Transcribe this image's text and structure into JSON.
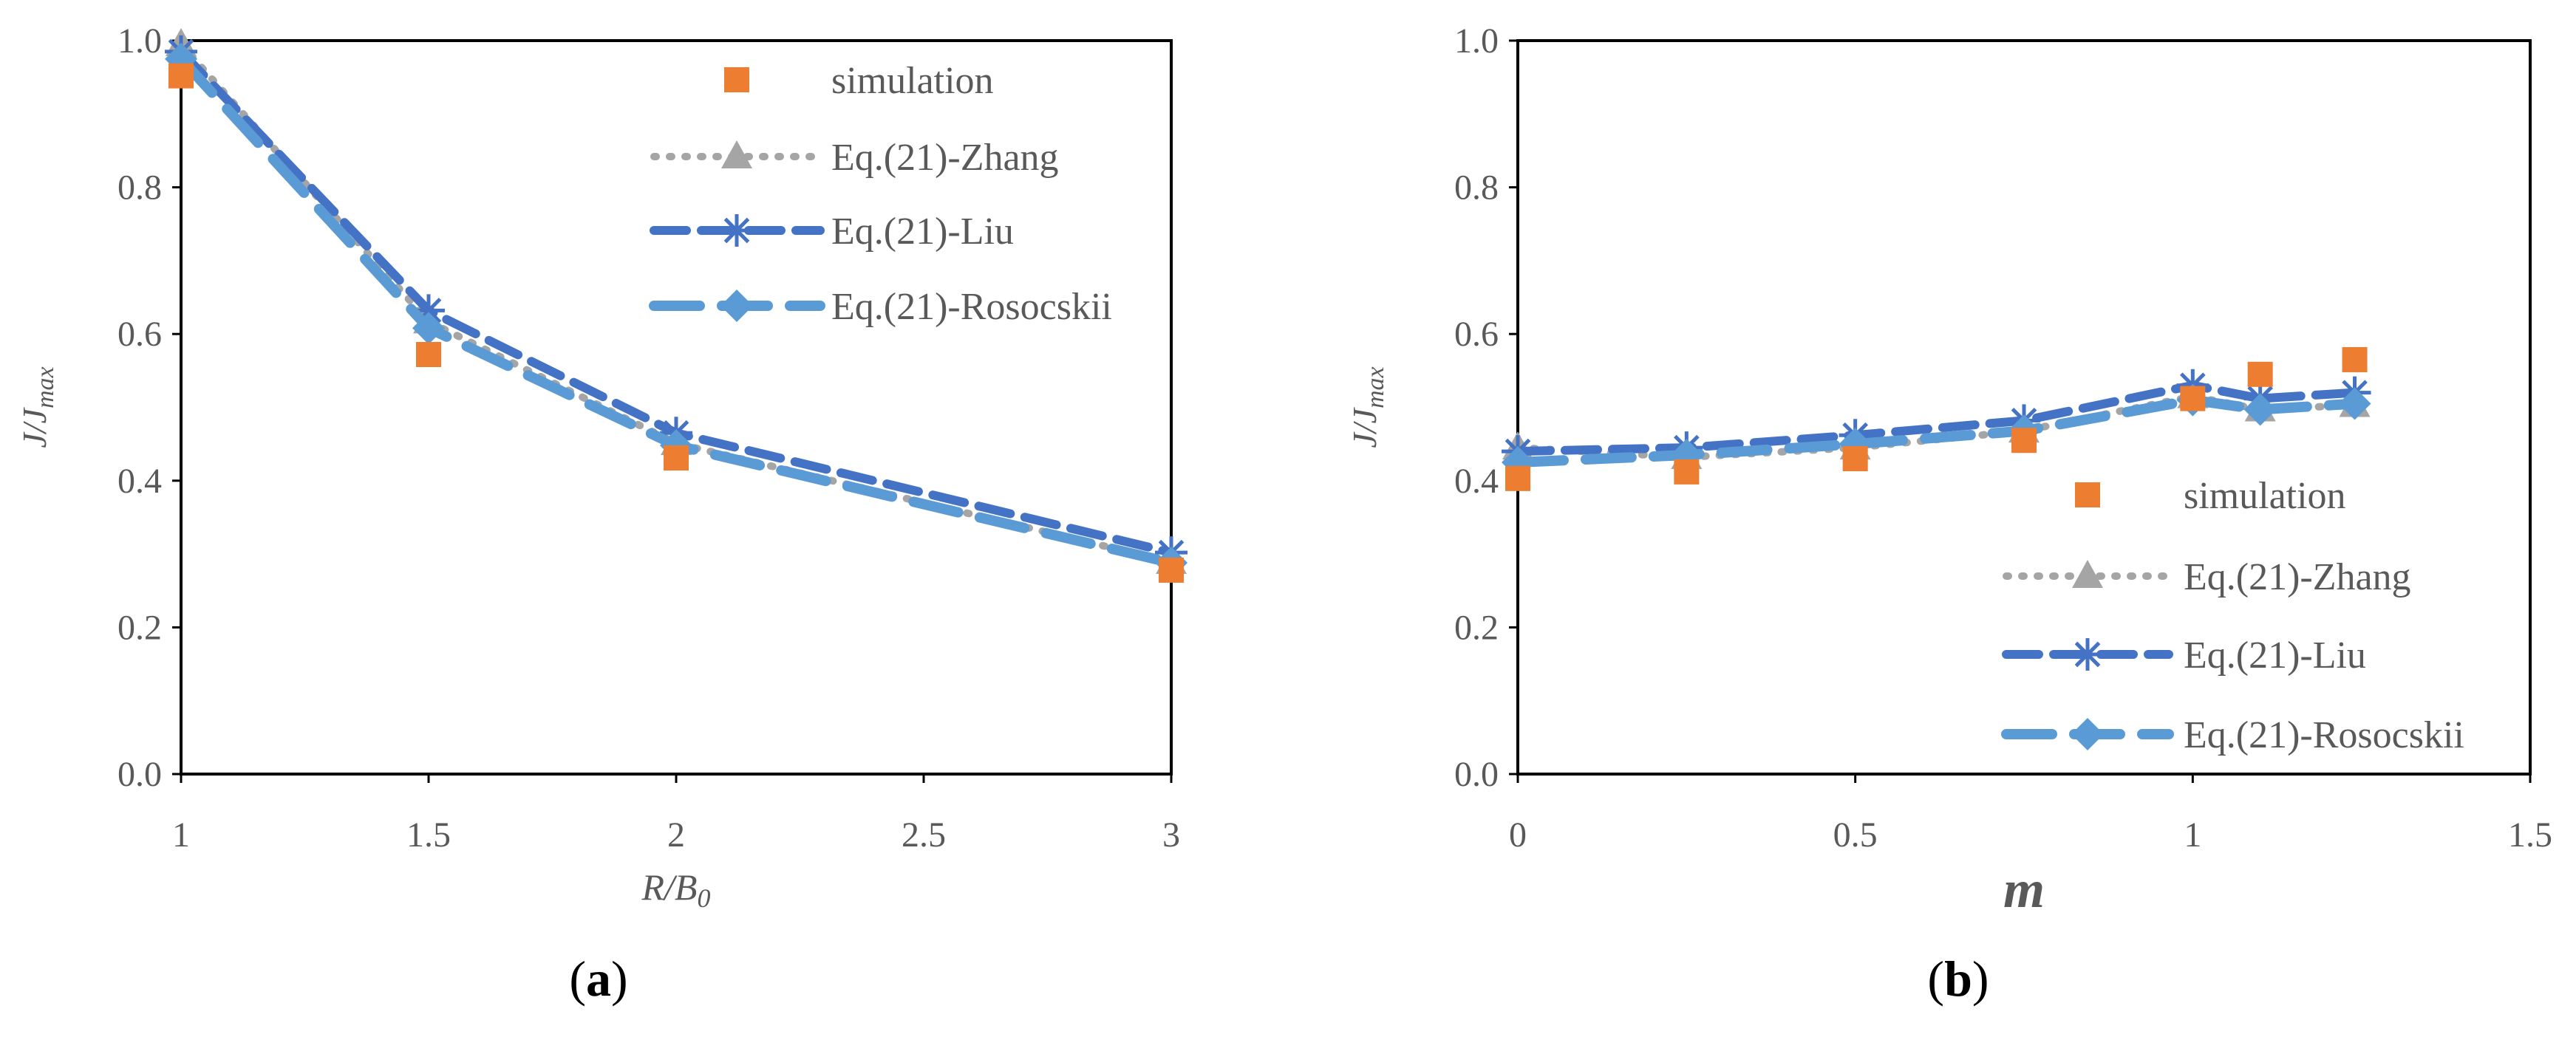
{
  "colors": {
    "simulation": "#ED7D31",
    "zhang": "#A5A5A5",
    "liu": "#4472C4",
    "rosocskii": "#5B9BD5",
    "axis": "#595959"
  },
  "chart_data": [
    {
      "type": "line",
      "panel_label": {
        "open": "(",
        "letter": "a",
        "close": ")"
      },
      "title": "",
      "xlabel": {
        "main": "R/B",
        "sub": "0"
      },
      "ylabel": {
        "main": "J/J",
        "sub": "max"
      },
      "xlim": [
        1,
        3
      ],
      "ylim": [
        0,
        1
      ],
      "xticks": [
        1,
        1.5,
        2,
        2.5,
        3
      ],
      "xtick_labels": [
        "1",
        "1.5",
        "2",
        "2.5",
        "3"
      ],
      "yticks": [
        0,
        0.2,
        0.4,
        0.6,
        0.8,
        1.0
      ],
      "ytick_labels": [
        "0.0",
        "0.2",
        "0.4",
        "0.6",
        "0.8",
        "1.0"
      ],
      "grid": false,
      "legend_position": "top-right",
      "series": [
        {
          "name": "simulation",
          "style": "markers",
          "marker": "square",
          "color_key": "simulation",
          "x": [
            1,
            1.5,
            2,
            3
          ],
          "values": [
            0.952,
            0.572,
            0.431,
            0.278
          ]
        },
        {
          "name": "Eq.(21)-Zhang",
          "style": "dotted",
          "marker": "triangle",
          "color_key": "zhang",
          "x": [
            1,
            1.5,
            2,
            3
          ],
          "values": [
            0.995,
            0.617,
            0.451,
            0.289
          ]
        },
        {
          "name": "Eq.(21)-Liu",
          "style": "dashed",
          "marker": "star",
          "color_key": "liu",
          "x": [
            1,
            1.5,
            2,
            3
          ],
          "values": [
            0.985,
            0.632,
            0.465,
            0.302
          ]
        },
        {
          "name": "Eq.(21)-Rosocskii",
          "style": "longdash",
          "marker": "diamond",
          "color_key": "rosocskii",
          "x": [
            1,
            1.5,
            2,
            3
          ],
          "values": [
            0.975,
            0.608,
            0.448,
            0.288
          ]
        }
      ]
    },
    {
      "type": "line",
      "panel_label": {
        "open": "(",
        "letter": "b",
        "close": ")"
      },
      "title": "",
      "xlabel": {
        "main": "m",
        "sub": ""
      },
      "ylabel": {
        "main": "J/J",
        "sub": "max"
      },
      "xlim": [
        0,
        1.5
      ],
      "ylim": [
        0,
        1
      ],
      "xticks": [
        0,
        0.5,
        1,
        1.5
      ],
      "xtick_labels": [
        "0",
        "0.5",
        "1",
        "1.5"
      ],
      "yticks": [
        0,
        0.2,
        0.4,
        0.6,
        0.8,
        1.0
      ],
      "ytick_labels": [
        "0.0",
        "0.2",
        "0.4",
        "0.6",
        "0.8",
        "1.0"
      ],
      "grid": false,
      "legend_position": "bottom-right",
      "series": [
        {
          "name": "simulation",
          "style": "markers",
          "marker": "square",
          "color_key": "simulation",
          "x": [
            0,
            0.25,
            0.5,
            0.75,
            1.0,
            1.1,
            1.24
          ],
          "values": [
            0.403,
            0.412,
            0.43,
            0.455,
            0.512,
            0.545,
            0.565
          ]
        },
        {
          "name": "Eq.(21)-Zhang",
          "style": "dotted",
          "marker": "triangle",
          "color_key": "zhang",
          "x": [
            0,
            0.25,
            0.5,
            0.75,
            1.0,
            1.1,
            1.24
          ],
          "values": [
            0.445,
            0.432,
            0.445,
            0.468,
            0.515,
            0.497,
            0.503
          ]
        },
        {
          "name": "Eq.(21)-Liu",
          "style": "dashed",
          "marker": "star",
          "color_key": "liu",
          "x": [
            0,
            0.25,
            0.5,
            0.75,
            1.0,
            1.1,
            1.24
          ],
          "values": [
            0.44,
            0.445,
            0.462,
            0.482,
            0.53,
            0.512,
            0.52
          ]
        },
        {
          "name": "Eq.(21)-Rosocskii",
          "style": "longdash",
          "marker": "diamond",
          "color_key": "rosocskii",
          "x": [
            0,
            0.25,
            0.5,
            0.75,
            1.0,
            1.1,
            1.24
          ],
          "values": [
            0.425,
            0.435,
            0.45,
            0.468,
            0.51,
            0.497,
            0.505
          ]
        }
      ]
    }
  ]
}
